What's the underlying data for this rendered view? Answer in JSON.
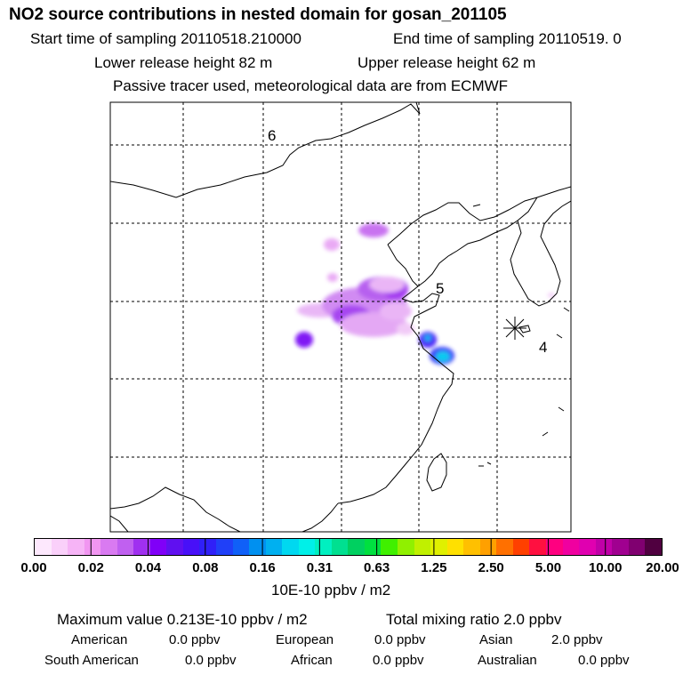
{
  "title": "NO2 source contributions in nested domain for gosan_201105",
  "header": {
    "start_label": "Start time of sampling 20110518.210000",
    "end_label": "End time of sampling 20110519.     0",
    "lower_label": "Lower release height   82 m",
    "upper_label": "Upper release height   62 m",
    "tracer_note": "Passive tracer used, meteorological data are from ECMWF"
  },
  "map": {
    "labels": {
      "six": "6",
      "five": "5",
      "four": "4"
    },
    "colors": {
      "grid": "#000000",
      "coast": "#000000",
      "receptor": "#000000"
    }
  },
  "colorbar": {
    "colors": [
      "#fde8fd",
      "#fad0fa",
      "#f6b4f6",
      "#f196f1",
      "#d97af1",
      "#c060f0",
      "#a030f0",
      "#8000f8",
      "#6010f0",
      "#4810f8",
      "#3020f8",
      "#2040f8",
      "#1060f8",
      "#0090f0",
      "#00b0f0",
      "#00d8f0",
      "#00f0e8",
      "#00f0c0",
      "#00e090",
      "#00d060",
      "#00e040",
      "#40f000",
      "#90f000",
      "#c0f000",
      "#e0f000",
      "#ffe000",
      "#ffc000",
      "#ffa000",
      "#ff7000",
      "#ff4000",
      "#ff1040",
      "#ff0080",
      "#f000a0",
      "#e000b0",
      "#c000a8",
      "#a00090",
      "#800070",
      "#500040"
    ],
    "ticks": [
      "0.00",
      "0.02",
      "0.04",
      "0.08",
      "0.16",
      "0.31",
      "0.63",
      "1.25",
      "2.50",
      "5.00",
      "10.00",
      "20.00"
    ],
    "unit": "10E-10 ppbv / m2"
  },
  "summary": {
    "max_value": "Maximum value  0.213E-10 ppbv / m2",
    "total_mixing": "Total mixing ratio        2.0 ppbv",
    "sources": [
      {
        "name": "American",
        "value": "0.0 ppbv"
      },
      {
        "name": "European",
        "value": "0.0 ppbv"
      },
      {
        "name": "Asian",
        "value": "2.0 ppbv"
      },
      {
        "name": "South American",
        "value": "0.0 ppbv"
      },
      {
        "name": "African",
        "value": "0.0 ppbv"
      },
      {
        "name": "Australian",
        "value": "0.0 ppbv"
      }
    ]
  }
}
